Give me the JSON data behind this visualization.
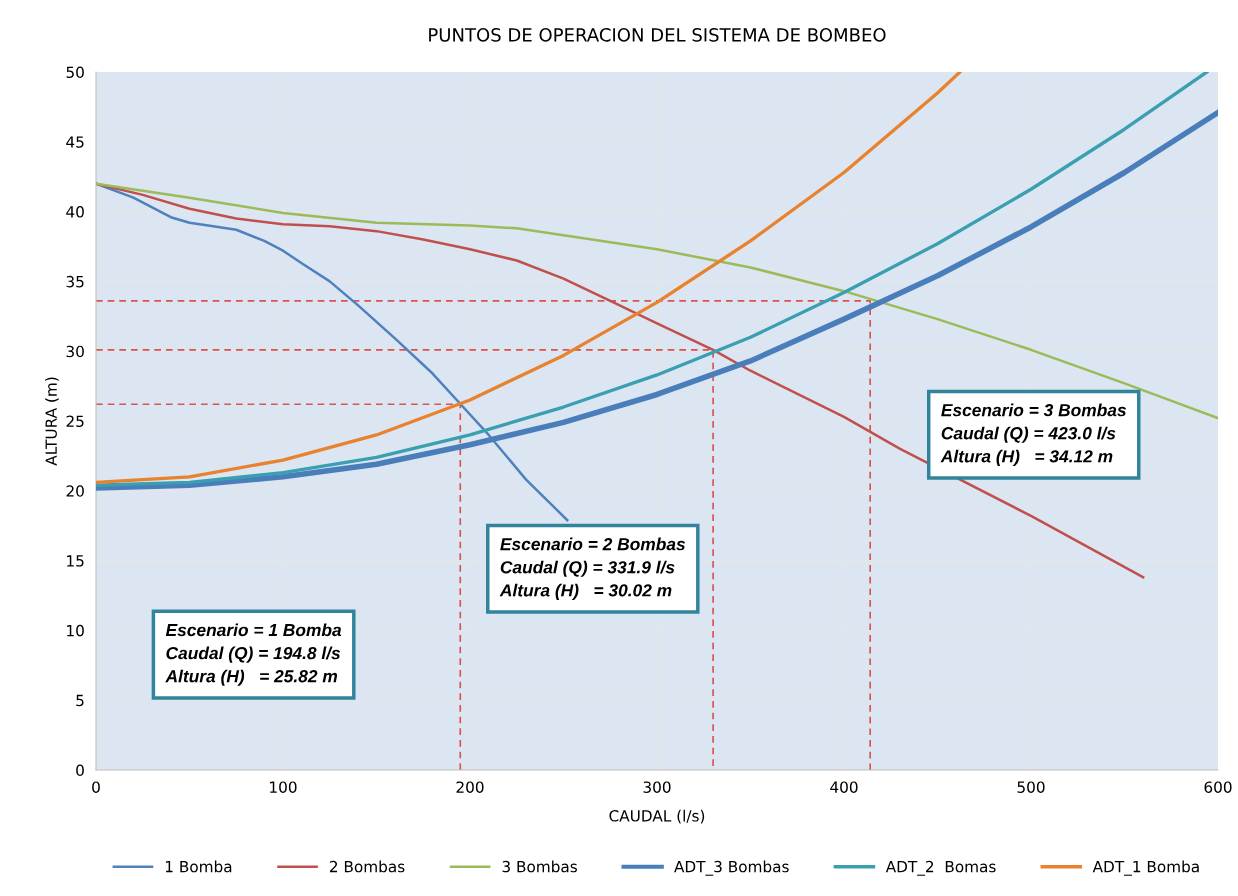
{
  "chart_data": {
    "type": "line",
    "title": "PUNTOS DE OPERACION DEL SISTEMA DE BOMBEO",
    "xlabel": "CAUDAL (l/s)",
    "ylabel": "ALTURA (m)",
    "xlim": [
      0,
      600
    ],
    "xticks": [
      0,
      100,
      200,
      300,
      400,
      500,
      600
    ],
    "ylim": [
      0,
      50
    ],
    "yticks": [
      0,
      5,
      10,
      15,
      20,
      25,
      30,
      35,
      40,
      45,
      50
    ],
    "grid": true,
    "legend": "bottom",
    "marker": "none",
    "line_style": "solid",
    "series": [
      {
        "name": "1 Bomba",
        "color": "#4f81bd",
        "x": [
          0,
          20,
          40,
          50,
          60,
          75,
          90,
          100,
          110,
          125,
          140,
          160,
          180,
          195,
          210,
          230,
          252
        ],
        "values": [
          42,
          41,
          39.6,
          39.2,
          39,
          38.7,
          37.9,
          37.2,
          36.3,
          35,
          33.3,
          30.9,
          28.4,
          26.2,
          24,
          20.8,
          17.9
        ]
      },
      {
        "name": "2 Bombas",
        "color": "#c0504d",
        "x": [
          0,
          25,
          50,
          75,
          100,
          125,
          150,
          175,
          200,
          225,
          250,
          275,
          300,
          330,
          350,
          400,
          430,
          500,
          560
        ],
        "values": [
          42,
          41.2,
          40.2,
          39.5,
          39.1,
          38.95,
          38.6,
          38,
          37.3,
          36.5,
          35.2,
          33.6,
          32,
          30.1,
          28.6,
          25.3,
          23,
          18.2,
          13.8
        ]
      },
      {
        "name": "3 Bombas",
        "color": "#9bbb59",
        "x": [
          0,
          50,
          100,
          150,
          200,
          225,
          250,
          300,
          350,
          400,
          450,
          500,
          550,
          600
        ],
        "values": [
          42,
          41,
          39.9,
          39.2,
          39,
          38.8,
          38.3,
          37.3,
          36,
          34.3,
          32.3,
          30.1,
          27.7,
          25.2
        ]
      },
      {
        "name": "ADT_3 Bombas",
        "color": "#4a7ebb",
        "x": [
          0,
          50,
          100,
          150,
          200,
          250,
          300,
          350,
          400,
          450,
          500,
          550,
          600
        ],
        "values": [
          20.2,
          20.4,
          21,
          21.9,
          23.3,
          24.9,
          26.9,
          29.3,
          32.3,
          35.4,
          38.9,
          42.8,
          47.1
        ]
      },
      {
        "name": "ADT_2  Bomas",
        "color": "#3a9fb0",
        "x": [
          0,
          50,
          100,
          150,
          200,
          250,
          300,
          350,
          400,
          450,
          500,
          550,
          594
        ],
        "values": [
          20.4,
          20.6,
          21.3,
          22.4,
          24,
          26,
          28.3,
          31,
          34.2,
          37.7,
          41.6,
          45.9,
          50
        ]
      },
      {
        "name": "ADT_1 Bomba",
        "color": "#e8822e",
        "x": [
          0,
          50,
          100,
          150,
          200,
          250,
          300,
          350,
          400,
          450,
          462
        ],
        "values": [
          20.6,
          21,
          22.2,
          24,
          26.5,
          29.7,
          33.5,
          37.9,
          42.8,
          48.5,
          50
        ]
      },
      {
        "color": "#d9534f",
        "line_style": "dashed",
        "x": [
          0,
          194.8,
          194.8
        ],
        "values": [
          26.2,
          26.2,
          0
        ]
      },
      {
        "color": "#d9534f",
        "line_style": "dashed",
        "x": [
          0,
          330,
          330
        ],
        "values": [
          30.1,
          30.1,
          0
        ]
      },
      {
        "color": "#d9534f",
        "line_style": "dashed",
        "x": [
          0,
          414,
          414
        ],
        "values": [
          33.6,
          33.6,
          0
        ]
      }
    ],
    "annotations": [
      "Escenario = 1 Bomba\nCaudal (Q) = 194.8 l/s\nAltura (H)   = 25.82 m",
      "Escenario = 2 Bombas\nCaudal (Q) = 331.9 l/s\nAltura (H)   = 30.02 m",
      "Escenario = 3 Bombas\nCaudal (Q) = 423.0 l/s\nAltura (H)   = 34.12 m"
    ]
  }
}
